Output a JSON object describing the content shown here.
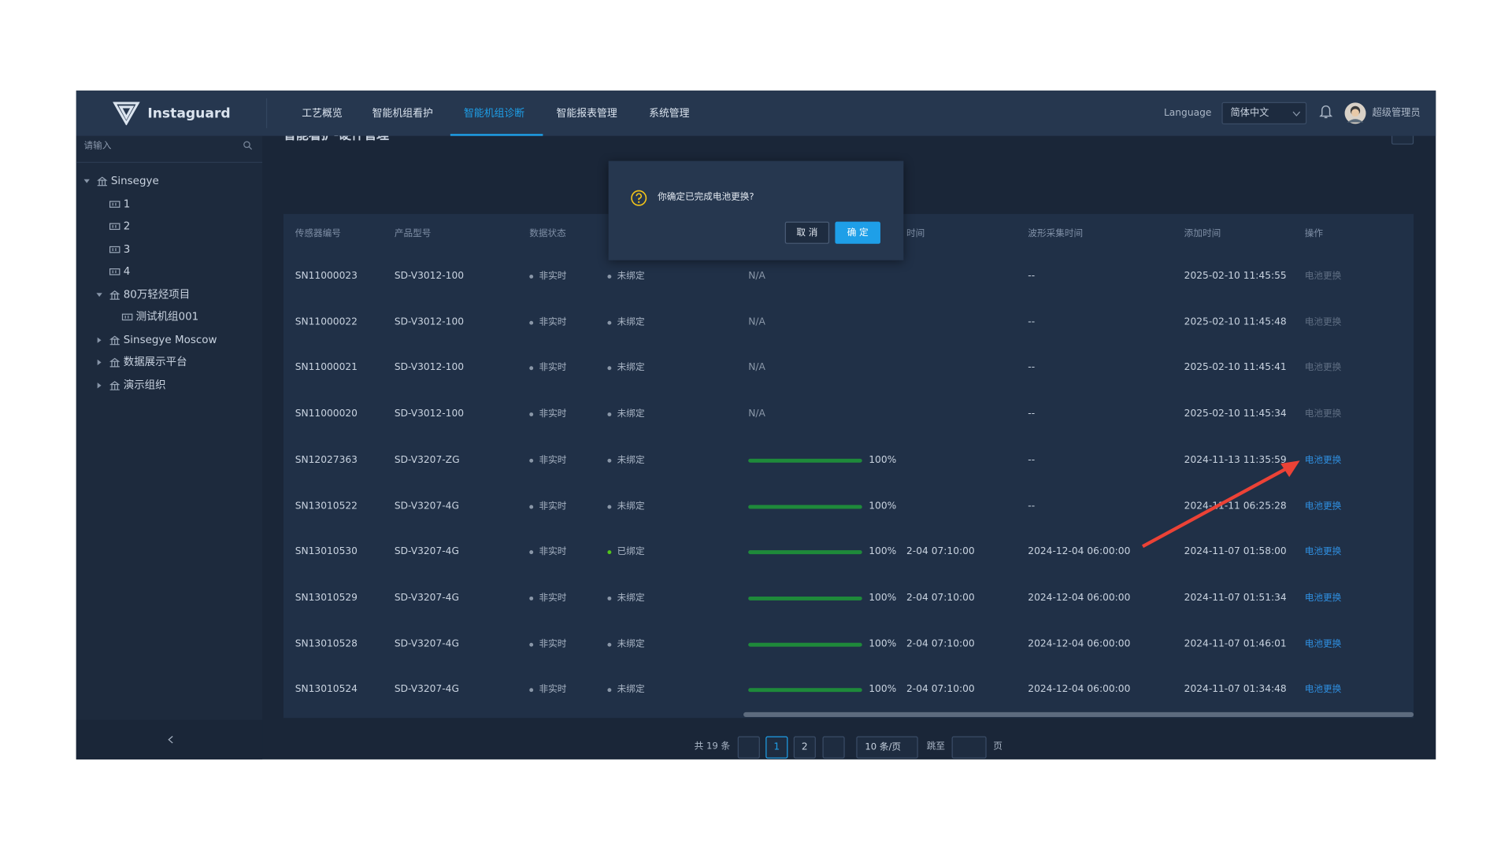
{
  "header": {
    "logo": "Instaguard",
    "nav": [
      "工艺概览",
      "智能机组看护",
      "智能机组诊断",
      "智能报表管理",
      "系统管理"
    ],
    "active_nav": 2,
    "language_label": "Language",
    "language": "简体中文",
    "user": "超级管理员"
  },
  "sidebar": {
    "search_placeholder": "请输入",
    "tree": [
      {
        "label": "Sinsegye",
        "children": [
          {
            "label": "1"
          },
          {
            "label": "2"
          },
          {
            "label": "3"
          },
          {
            "label": "4"
          },
          {
            "label": "80万轻烃项目",
            "children": [
              {
                "label": "测试机组001"
              }
            ]
          },
          {
            "label": "Sinsegye Moscow",
            "collapsed": true
          },
          {
            "label": "数据展示平台",
            "collapsed": true
          },
          {
            "label": "演示组织",
            "collapsed": true
          }
        ]
      }
    ]
  },
  "page": {
    "title": "智能看护-硬件管理",
    "filters": [
      "传感器编号",
      "数据状态"
    ]
  },
  "dialog": {
    "message": "你确定已完成电池更换?",
    "cancel": "取 消",
    "confirm": "确 定"
  },
  "table": {
    "columns": [
      "传感器编号",
      "产品型号",
      "数据状态",
      null,
      null,
      "时间",
      "波形采集时间",
      "添加时间",
      "操作"
    ],
    "rows": [
      {
        "sensor_id": "SN11000023",
        "model": "SD-V3012-100",
        "data_status": "非实时",
        "binding": {
          "text": "未绑定",
          "color": "#8a97a8"
        },
        "battery": "N/A",
        "collect_time": null,
        "waveform_time": "--",
        "added_time": "2025-02-10 11:45:55",
        "action": "电池更换",
        "action_enabled": false
      },
      {
        "sensor_id": "SN11000022",
        "model": "SD-V3012-100",
        "data_status": "非实时",
        "binding": {
          "text": "未绑定",
          "color": "#8a97a8"
        },
        "battery": "N/A",
        "collect_time": null,
        "waveform_time": "--",
        "added_time": "2025-02-10 11:45:48",
        "action": "电池更换",
        "action_enabled": false
      },
      {
        "sensor_id": "SN11000021",
        "model": "SD-V3012-100",
        "data_status": "非实时",
        "binding": {
          "text": "未绑定",
          "color": "#8a97a8"
        },
        "battery": "N/A",
        "collect_time": null,
        "waveform_time": "--",
        "added_time": "2025-02-10 11:45:41",
        "action": "电池更换",
        "action_enabled": false
      },
      {
        "sensor_id": "SN11000020",
        "model": "SD-V3012-100",
        "data_status": "非实时",
        "binding": {
          "text": "未绑定",
          "color": "#8a97a8"
        },
        "battery": "N/A",
        "collect_time": null,
        "waveform_time": "--",
        "added_time": "2025-02-10 11:45:34",
        "action": "电池更换",
        "action_enabled": false
      },
      {
        "sensor_id": "SN12027363",
        "model": "SD-V3207-ZG",
        "data_status": "非实时",
        "binding": {
          "text": "未绑定",
          "color": "#8a97a8"
        },
        "battery": {
          "value": 100,
          "label": "100%"
        },
        "collect_time": null,
        "waveform_time": "--",
        "added_time": "2024-11-13 11:35:59",
        "action": "电池更换",
        "action_enabled": true
      },
      {
        "sensor_id": "SN13010522",
        "model": "SD-V3207-4G",
        "data_status": "非实时",
        "binding": {
          "text": "未绑定",
          "color": "#8a97a8"
        },
        "battery": {
          "value": 100,
          "label": "100%"
        },
        "collect_time": null,
        "waveform_time": "--",
        "added_time": "2024-11-11 06:25:28",
        "action": "电池更换",
        "action_enabled": true
      },
      {
        "sensor_id": "SN13010530",
        "model": "SD-V3207-4G",
        "data_status": "非实时",
        "binding": {
          "text": "已绑定",
          "color": "#52c41a"
        },
        "battery": {
          "value": 100,
          "label": "100%"
        },
        "collect_time": "2-04 07:10:00",
        "waveform_time": "2024-12-04 06:00:00",
        "added_time": "2024-11-07 01:58:00",
        "action": "电池更换",
        "action_enabled": true
      },
      {
        "sensor_id": "SN13010529",
        "model": "SD-V3207-4G",
        "data_status": "非实时",
        "binding": {
          "text": "未绑定",
          "color": "#8a97a8"
        },
        "battery": {
          "value": 100,
          "label": "100%"
        },
        "collect_time": "2-04 07:10:00",
        "waveform_time": "2024-12-04 06:00:00",
        "added_time": "2024-11-07 01:51:34",
        "action": "电池更换",
        "action_enabled": true
      },
      {
        "sensor_id": "SN13010528",
        "model": "SD-V3207-4G",
        "data_status": "非实时",
        "binding": {
          "text": "未绑定",
          "color": "#8a97a8"
        },
        "battery": {
          "value": 100,
          "label": "100%"
        },
        "collect_time": "2-04 07:10:00",
        "waveform_time": "2024-12-04 06:00:00",
        "added_time": "2024-11-07 01:46:01",
        "action": "电池更换",
        "action_enabled": true
      },
      {
        "sensor_id": "SN13010524",
        "model": "SD-V3207-4G",
        "data_status": "非实时",
        "binding": {
          "text": "未绑定",
          "color": "#8a97a8"
        },
        "battery": {
          "value": 100,
          "label": "100%"
        },
        "collect_time": "2-04 07:10:00",
        "waveform_time": "2024-12-04 06:00:00",
        "added_time": "2024-11-07 01:34:48",
        "action": "电池更换",
        "action_enabled": true
      }
    ]
  },
  "pagination": {
    "total": "共 19 条",
    "pages": [
      1,
      2
    ],
    "current": 1,
    "page_size": "10 条/页",
    "jump_label": "跳至",
    "page_unit": "页"
  }
}
